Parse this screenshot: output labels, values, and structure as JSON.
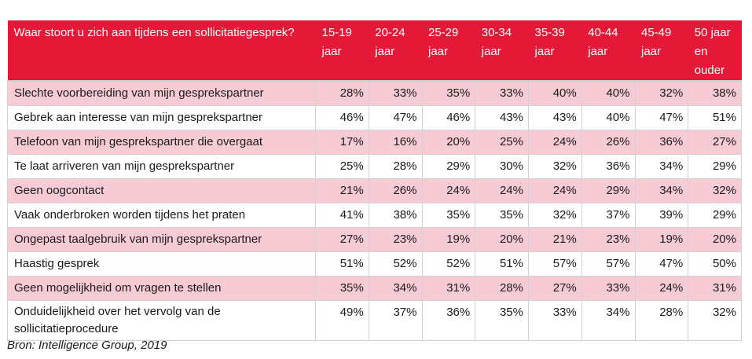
{
  "chart_data": {
    "type": "table",
    "header_question": "Waar stoort u zich aan tijdens een sollicitatiegesprek?",
    "columns": [
      "15-19 jaar",
      "20-24 jaar",
      "25-29 jaar",
      "30-34 jaar",
      "35-39 jaar",
      "40-44 jaar",
      "45-49 jaar",
      "50 jaar en ouder"
    ],
    "rows": [
      {
        "label": "Slechte voorbereiding van mijn gesprekspartner",
        "values": [
          "28%",
          "33%",
          "35%",
          "33%",
          "40%",
          "40%",
          "32%",
          "38%"
        ]
      },
      {
        "label": "Gebrek aan interesse van mijn gesprekspartner",
        "values": [
          "46%",
          "47%",
          "46%",
          "43%",
          "43%",
          "40%",
          "47%",
          "51%"
        ]
      },
      {
        "label": "Telefoon van mijn gesprekspartner die overgaat",
        "values": [
          "17%",
          "16%",
          "20%",
          "25%",
          "24%",
          "26%",
          "36%",
          "27%"
        ]
      },
      {
        "label": "Te laat arriveren van mijn gesprekspartner",
        "values": [
          "25%",
          "28%",
          "29%",
          "30%",
          "32%",
          "36%",
          "34%",
          "29%"
        ]
      },
      {
        "label": "Geen oogcontact",
        "values": [
          "21%",
          "26%",
          "24%",
          "24%",
          "24%",
          "29%",
          "34%",
          "32%"
        ]
      },
      {
        "label": "Vaak onderbroken worden tijdens het praten",
        "values": [
          "41%",
          "38%",
          "35%",
          "35%",
          "32%",
          "37%",
          "39%",
          "29%"
        ]
      },
      {
        "label": "Ongepast taalgebruik van mijn gesprekspartner",
        "values": [
          "27%",
          "23%",
          "19%",
          "20%",
          "21%",
          "23%",
          "19%",
          "20%"
        ]
      },
      {
        "label": "Haastig gesprek",
        "values": [
          "51%",
          "52%",
          "52%",
          "51%",
          "57%",
          "57%",
          "47%",
          "50%"
        ]
      },
      {
        "label": "Geen mogelijkheid om vragen te stellen",
        "values": [
          "35%",
          "34%",
          "31%",
          "28%",
          "27%",
          "33%",
          "24%",
          "31%"
        ]
      },
      {
        "label": "Onduidelijkheid over het vervolg van de sollicitatieprocedure",
        "values": [
          "49%",
          "37%",
          "36%",
          "35%",
          "33%",
          "34%",
          "28%",
          "32%"
        ]
      }
    ],
    "source": "Bron: Intelligence Group, 2019",
    "colors": {
      "header": "#e31937",
      "row_alt": "#f6cbd4",
      "row": "#ffffff"
    }
  }
}
